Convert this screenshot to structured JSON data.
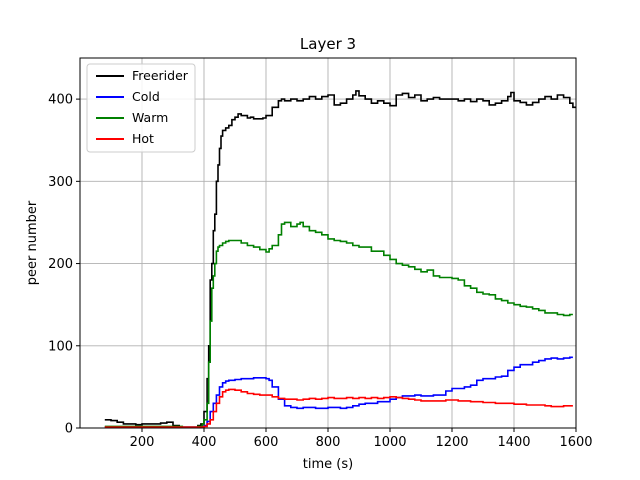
{
  "chart_data": {
    "type": "line",
    "title": "Layer 3",
    "xlabel": "time (s)",
    "ylabel": "peer number",
    "xlim": [
      0,
      1600
    ],
    "ylim": [
      0,
      450
    ],
    "xticks": [
      200,
      400,
      600,
      800,
      1000,
      1200,
      1400,
      1600
    ],
    "yticks": [
      0,
      100,
      200,
      300,
      400
    ],
    "grid": true,
    "legend_position": "upper-left",
    "step": true,
    "series": [
      {
        "name": "Freerider",
        "color": "#000000",
        "x": [
          80,
          100,
          120,
          140,
          160,
          180,
          200,
          220,
          240,
          260,
          280,
          300,
          320,
          340,
          360,
          380,
          390,
          400,
          410,
          415,
          420,
          425,
          430,
          435,
          440,
          445,
          450,
          455,
          460,
          470,
          480,
          490,
          500,
          510,
          520,
          530,
          540,
          550,
          560,
          570,
          580,
          590,
          600,
          620,
          640,
          650,
          660,
          680,
          700,
          720,
          740,
          760,
          780,
          800,
          820,
          840,
          860,
          880,
          890,
          900,
          920,
          940,
          960,
          980,
          1000,
          1020,
          1040,
          1060,
          1080,
          1100,
          1120,
          1140,
          1160,
          1180,
          1200,
          1220,
          1240,
          1260,
          1280,
          1300,
          1320,
          1340,
          1360,
          1380,
          1390,
          1400,
          1420,
          1440,
          1460,
          1480,
          1500,
          1520,
          1540,
          1560,
          1580,
          1590
        ],
        "y": [
          10,
          9,
          7,
          5,
          5,
          4,
          5,
          5,
          5,
          6,
          7,
          3,
          1,
          1,
          1,
          3,
          5,
          20,
          60,
          100,
          180,
          200,
          240,
          260,
          300,
          320,
          340,
          355,
          362,
          365,
          368,
          375,
          378,
          382,
          380,
          380,
          377,
          378,
          376,
          376,
          376,
          377,
          380,
          390,
          398,
          400,
          398,
          400,
          398,
          400,
          403,
          400,
          403,
          405,
          393,
          395,
          400,
          405,
          410,
          404,
          400,
          395,
          398,
          395,
          392,
          405,
          407,
          402,
          405,
          398,
          400,
          402,
          400,
          400,
          400,
          398,
          400,
          397,
          400,
          398,
          393,
          395,
          398,
          403,
          408,
          398,
          396,
          393,
          396,
          400,
          403,
          400,
          405,
          402,
          395,
          390
        ]
      },
      {
        "name": "Cold",
        "color": "#0000ff",
        "x": [
          80,
          100,
          150,
          200,
          260,
          300,
          330,
          360,
          380,
          400,
          410,
          420,
          430,
          440,
          450,
          460,
          470,
          480,
          500,
          520,
          540,
          560,
          580,
          600,
          610,
          620,
          640,
          660,
          680,
          700,
          720,
          760,
          800,
          840,
          860,
          880,
          900,
          920,
          960,
          1000,
          1020,
          1040,
          1080,
          1100,
          1140,
          1180,
          1200,
          1240,
          1260,
          1280,
          1300,
          1340,
          1360,
          1380,
          1400,
          1420,
          1440,
          1460,
          1480,
          1500,
          1520,
          1540,
          1560,
          1580
        ],
        "y": [
          1,
          1,
          1,
          1,
          1,
          1,
          1,
          1,
          1,
          3,
          8,
          20,
          30,
          40,
          50,
          55,
          57,
          58,
          59,
          60,
          60,
          61,
          61,
          60,
          58,
          50,
          35,
          27,
          25,
          24,
          25,
          24,
          25,
          24,
          25,
          27,
          29,
          30,
          32,
          35,
          37,
          39,
          40,
          39,
          40,
          45,
          48,
          50,
          52,
          58,
          60,
          62,
          63,
          70,
          74,
          77,
          77,
          80,
          82,
          84,
          85,
          84,
          85,
          86
        ]
      },
      {
        "name": "Warm",
        "color": "#008000",
        "x": [
          80,
          100,
          150,
          200,
          260,
          300,
          330,
          360,
          380,
          395,
          400,
          410,
          415,
          420,
          425,
          430,
          435,
          440,
          445,
          450,
          460,
          470,
          480,
          500,
          520,
          540,
          560,
          580,
          600,
          610,
          620,
          640,
          650,
          660,
          680,
          700,
          710,
          720,
          740,
          760,
          780,
          800,
          820,
          840,
          860,
          880,
          900,
          920,
          940,
          960,
          980,
          1000,
          1020,
          1040,
          1060,
          1080,
          1100,
          1120,
          1140,
          1160,
          1180,
          1200,
          1220,
          1240,
          1260,
          1280,
          1300,
          1320,
          1340,
          1360,
          1380,
          1400,
          1420,
          1440,
          1460,
          1480,
          1500,
          1520,
          1540,
          1560,
          1580
        ],
        "y": [
          2,
          2,
          2,
          2,
          2,
          2,
          1,
          1,
          2,
          5,
          10,
          30,
          80,
          130,
          170,
          185,
          200,
          215,
          220,
          222,
          225,
          227,
          228,
          228,
          225,
          222,
          220,
          217,
          214,
          218,
          222,
          235,
          248,
          250,
          245,
          248,
          250,
          245,
          240,
          238,
          235,
          230,
          228,
          227,
          225,
          222,
          220,
          220,
          215,
          215,
          210,
          205,
          200,
          198,
          196,
          193,
          190,
          192,
          185,
          183,
          183,
          182,
          180,
          173,
          170,
          165,
          163,
          162,
          157,
          155,
          152,
          150,
          148,
          147,
          145,
          143,
          140,
          140,
          138,
          137,
          138
        ]
      },
      {
        "name": "Hot",
        "color": "#ff0000",
        "x": [
          80,
          100,
          150,
          200,
          260,
          300,
          330,
          360,
          380,
          400,
          410,
          420,
          430,
          440,
          450,
          460,
          470,
          480,
          500,
          520,
          540,
          560,
          580,
          600,
          620,
          640,
          660,
          680,
          700,
          720,
          740,
          760,
          780,
          800,
          820,
          840,
          860,
          880,
          900,
          920,
          940,
          960,
          980,
          1000,
          1020,
          1040,
          1060,
          1080,
          1100,
          1140,
          1180,
          1220,
          1260,
          1300,
          1340,
          1380,
          1400,
          1440,
          1480,
          1500,
          1520,
          1540,
          1560,
          1580
        ],
        "y": [
          1,
          1,
          1,
          1,
          1,
          1,
          1,
          1,
          1,
          2,
          5,
          10,
          20,
          30,
          38,
          44,
          46,
          47,
          46,
          44,
          42,
          41,
          40,
          40,
          38,
          36,
          35,
          35,
          34,
          35,
          36,
          35,
          36,
          37,
          36,
          36,
          37,
          36,
          37,
          36,
          37,
          36,
          37,
          38,
          37,
          36,
          35,
          34,
          33,
          33,
          34,
          33,
          32,
          31,
          30,
          30,
          29,
          28,
          28,
          27,
          26,
          26,
          27,
          27
        ]
      }
    ]
  }
}
